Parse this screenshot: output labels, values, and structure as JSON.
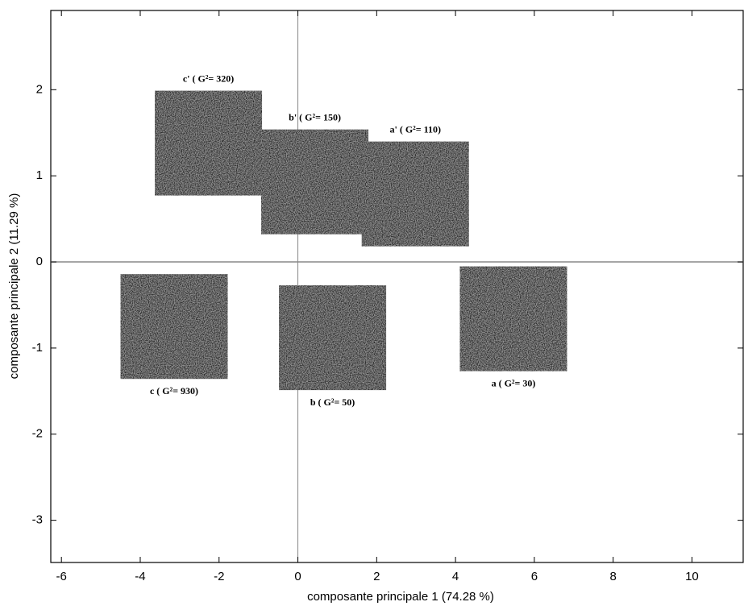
{
  "chart_data": {
    "type": "scatter",
    "xlabel": "composante principale 1 (74.28 %)",
    "ylabel": "composante principale 2 (11.29 %)",
    "x": [
      -2.27,
      0.43,
      2.98,
      -3.14,
      0.88,
      5.47
    ],
    "values": [
      1.38,
      0.93,
      0.79,
      -0.75,
      -0.88,
      -0.66
    ],
    "point_labels": [
      "c' ( G²= 320)",
      "b' ( G²= 150)",
      "a' ( G²= 110)",
      "c ( G²= 930)",
      "b ( G²= 50)",
      "a ( G²= 30)"
    ],
    "color": "#2b2b2b",
    "xlim": [
      -6.27,
      11.3
    ],
    "xticks": [
      -6,
      -4,
      -2,
      0,
      2,
      4,
      6,
      8,
      10
    ],
    "ylim": [
      -3.49,
      2.92
    ],
    "yticks": [
      -3,
      -2,
      -1,
      0,
      1,
      2
    ]
  }
}
